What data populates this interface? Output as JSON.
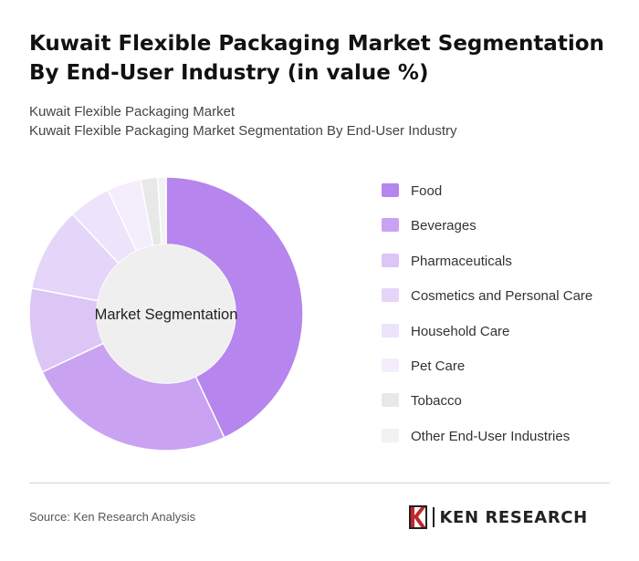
{
  "title": "Kuwait Flexible Packaging Market Segmentation By End-User Industry (in value %)",
  "subtitle_line1": "Kuwait Flexible Packaging Market",
  "subtitle_line2": "Kuwait Flexible Packaging Market Segmentation By End-User Industry",
  "source": "Source: Ken Research Analysis",
  "logo": {
    "text": "KEN RESEARCH",
    "icon": "ken-research-k-logo"
  },
  "chart_data": {
    "type": "pie",
    "variant": "donut",
    "center_label": "Market Segmentation",
    "legend_position": "right",
    "categories": [
      "Food",
      "Beverages",
      "Pharmaceuticals",
      "Cosmetics and Personal Care",
      "Household Care",
      "Pet Care",
      "Tobacco",
      "Other End-User Industries"
    ],
    "values": [
      43,
      25,
      10,
      10,
      5,
      4,
      2,
      1
    ],
    "colors": [
      "#b685ed",
      "#c9a3f1",
      "#dcc6f6",
      "#e5d5f8",
      "#ede3fa",
      "#f3edfc",
      "#e8e8e8",
      "#f2f2f2"
    ],
    "center_color": "#efefef"
  }
}
